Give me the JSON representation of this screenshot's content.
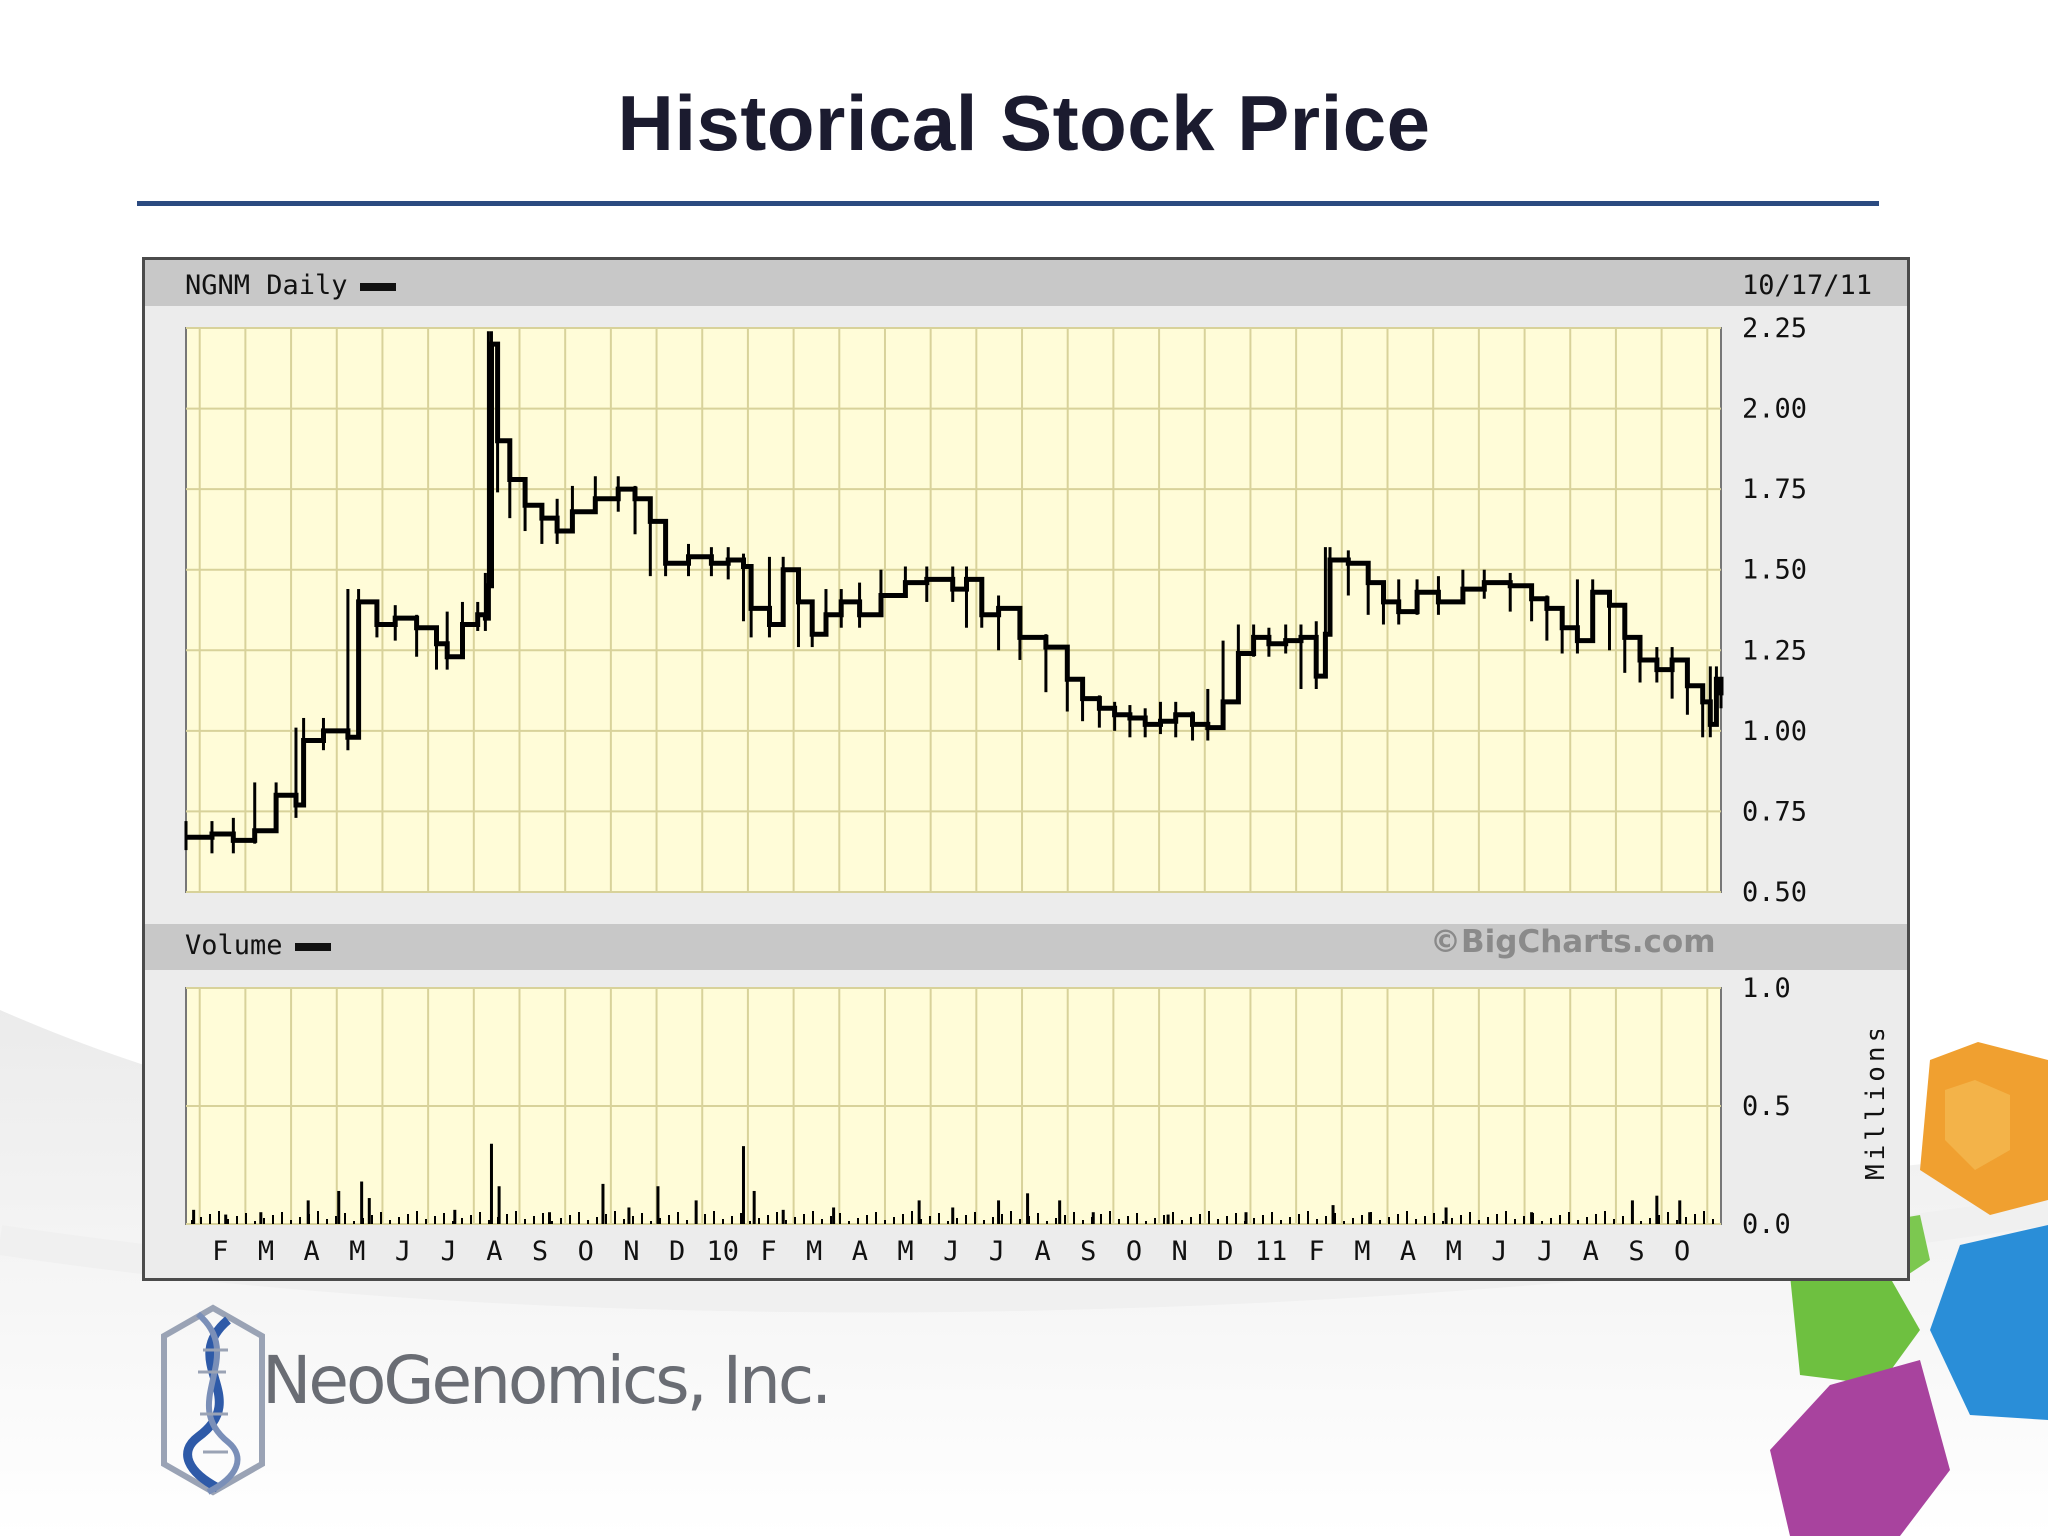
{
  "slide": {
    "title": "Historical Stock Price",
    "company": "NeoGenomics, Inc.",
    "accent_color": "#2b4a80",
    "logo_icon": "dna-helix-icon",
    "decoration_icon": "hexagon-cluster-icon"
  },
  "chart_data": [
    {
      "type": "line",
      "title": "NGNM Daily",
      "date": "10/17/11",
      "series": [
        {
          "name": "NGNM Daily",
          "color": "#000000"
        }
      ],
      "x_label_unit": "month",
      "x_tick_labels": [
        "F",
        "M",
        "A",
        "M",
        "J",
        "J",
        "A",
        "S",
        "O",
        "N",
        "D",
        "10",
        "F",
        "M",
        "A",
        "M",
        "J",
        "J",
        "A",
        "S",
        "O",
        "N",
        "D",
        "11",
        "F",
        "M",
        "A",
        "M",
        "J",
        "J",
        "A",
        "S",
        "O"
      ],
      "x_range": [
        "2009-01-15",
        "2011-10-17"
      ],
      "y_ticks": [
        0.5,
        0.75,
        1.0,
        1.25,
        1.5,
        1.75,
        2.0,
        2.25
      ],
      "y_tick_labels": [
        "0.50",
        "0.75",
        "1.00",
        "1.25",
        "1.50",
        "1.75",
        "2.00",
        "2.25"
      ],
      "ylim": [
        0.5,
        2.25
      ],
      "grid": true,
      "price_points": [
        [
          "2009-01-15",
          0.67
        ],
        [
          "2009-02-01",
          0.68
        ],
        [
          "2009-02-15",
          0.66
        ],
        [
          "2009-03-01",
          0.69
        ],
        [
          "2009-03-15",
          0.8
        ],
        [
          "2009-03-28",
          0.77
        ],
        [
          "2009-04-02",
          0.97
        ],
        [
          "2009-04-15",
          1.0
        ],
        [
          "2009-05-01",
          0.98
        ],
        [
          "2009-05-08",
          1.4
        ],
        [
          "2009-05-20",
          1.33
        ],
        [
          "2009-06-01",
          1.35
        ],
        [
          "2009-06-15",
          1.32
        ],
        [
          "2009-06-28",
          1.27
        ],
        [
          "2009-07-05",
          1.23
        ],
        [
          "2009-07-15",
          1.33
        ],
        [
          "2009-07-25",
          1.36
        ],
        [
          "2009-07-30",
          1.35
        ],
        [
          "2009-08-01",
          1.45
        ],
        [
          "2009-08-03",
          2.2
        ],
        [
          "2009-08-07",
          1.9
        ],
        [
          "2009-08-15",
          1.78
        ],
        [
          "2009-08-25",
          1.7
        ],
        [
          "2009-09-05",
          1.66
        ],
        [
          "2009-09-15",
          1.62
        ],
        [
          "2009-09-25",
          1.68
        ],
        [
          "2009-10-10",
          1.72
        ],
        [
          "2009-10-25",
          1.75
        ],
        [
          "2009-11-05",
          1.72
        ],
        [
          "2009-11-15",
          1.65
        ],
        [
          "2009-11-25",
          1.52
        ],
        [
          "2009-12-10",
          1.54
        ],
        [
          "2009-12-25",
          1.52
        ],
        [
          "2010-01-05",
          1.53
        ],
        [
          "2010-01-15",
          1.51
        ],
        [
          "2010-01-20",
          1.38
        ],
        [
          "2010-02-01",
          1.33
        ],
        [
          "2010-02-10",
          1.5
        ],
        [
          "2010-02-20",
          1.4
        ],
        [
          "2010-03-01",
          1.3
        ],
        [
          "2010-03-10",
          1.36
        ],
        [
          "2010-03-20",
          1.4
        ],
        [
          "2010-04-01",
          1.36
        ],
        [
          "2010-04-15",
          1.42
        ],
        [
          "2010-05-01",
          1.46
        ],
        [
          "2010-05-15",
          1.47
        ],
        [
          "2010-06-01",
          1.44
        ],
        [
          "2010-06-10",
          1.47
        ],
        [
          "2010-06-20",
          1.36
        ],
        [
          "2010-07-01",
          1.38
        ],
        [
          "2010-07-15",
          1.29
        ],
        [
          "2010-08-01",
          1.26
        ],
        [
          "2010-08-15",
          1.16
        ],
        [
          "2010-08-25",
          1.1
        ],
        [
          "2010-09-05",
          1.07
        ],
        [
          "2010-09-15",
          1.05
        ],
        [
          "2010-09-25",
          1.04
        ],
        [
          "2010-10-05",
          1.02
        ],
        [
          "2010-10-15",
          1.03
        ],
        [
          "2010-10-25",
          1.05
        ],
        [
          "2010-11-05",
          1.02
        ],
        [
          "2010-11-15",
          1.01
        ],
        [
          "2010-11-25",
          1.09
        ],
        [
          "2010-12-05",
          1.24
        ],
        [
          "2010-12-15",
          1.29
        ],
        [
          "2010-12-25",
          1.27
        ],
        [
          "2011-01-05",
          1.28
        ],
        [
          "2011-01-15",
          1.29
        ],
        [
          "2011-01-25",
          1.17
        ],
        [
          "2011-01-31",
          1.3
        ],
        [
          "2011-02-03",
          1.53
        ],
        [
          "2011-02-15",
          1.52
        ],
        [
          "2011-02-28",
          1.46
        ],
        [
          "2011-03-10",
          1.4
        ],
        [
          "2011-03-20",
          1.37
        ],
        [
          "2011-04-01",
          1.43
        ],
        [
          "2011-04-15",
          1.4
        ],
        [
          "2011-05-01",
          1.44
        ],
        [
          "2011-05-15",
          1.46
        ],
        [
          "2011-06-01",
          1.45
        ],
        [
          "2011-06-15",
          1.41
        ],
        [
          "2011-06-25",
          1.38
        ],
        [
          "2011-07-05",
          1.32
        ],
        [
          "2011-07-15",
          1.28
        ],
        [
          "2011-07-25",
          1.43
        ],
        [
          "2011-08-05",
          1.39
        ],
        [
          "2011-08-15",
          1.29
        ],
        [
          "2011-08-25",
          1.22
        ],
        [
          "2011-09-05",
          1.19
        ],
        [
          "2011-09-15",
          1.22
        ],
        [
          "2011-09-25",
          1.14
        ],
        [
          "2011-10-05",
          1.09
        ],
        [
          "2011-10-10",
          1.02
        ],
        [
          "2011-10-14",
          1.16
        ],
        [
          "2011-10-17",
          1.11
        ]
      ]
    },
    {
      "type": "bar",
      "title": "Volume",
      "watermark": "©BigCharts.com",
      "series": [
        {
          "name": "Volume",
          "color": "#000000"
        }
      ],
      "ylabel": "Millions",
      "y_ticks": [
        0.0,
        0.5,
        1.0
      ],
      "y_tick_labels": [
        "0.0",
        "0.5",
        "1.0"
      ],
      "ylim": [
        0.0,
        1.0
      ],
      "grid": true,
      "volume_spikes": [
        [
          "2009-01-20",
          0.06
        ],
        [
          "2009-02-10",
          0.04
        ],
        [
          "2009-03-05",
          0.05
        ],
        [
          "2009-04-05",
          0.1
        ],
        [
          "2009-04-25",
          0.14
        ],
        [
          "2009-05-10",
          0.18
        ],
        [
          "2009-05-15",
          0.11
        ],
        [
          "2009-07-10",
          0.06
        ],
        [
          "2009-08-03",
          0.34
        ],
        [
          "2009-08-08",
          0.16
        ],
        [
          "2009-09-10",
          0.05
        ],
        [
          "2009-10-15",
          0.17
        ],
        [
          "2009-11-01",
          0.07
        ],
        [
          "2009-11-20",
          0.16
        ],
        [
          "2009-12-15",
          0.1
        ],
        [
          "2010-01-15",
          0.33
        ],
        [
          "2010-01-22",
          0.14
        ],
        [
          "2010-02-10",
          0.06
        ],
        [
          "2010-03-15",
          0.07
        ],
        [
          "2010-05-10",
          0.1
        ],
        [
          "2010-06-01",
          0.07
        ],
        [
          "2010-07-01",
          0.1
        ],
        [
          "2010-07-20",
          0.13
        ],
        [
          "2010-08-10",
          0.1
        ],
        [
          "2010-09-01",
          0.05
        ],
        [
          "2010-10-20",
          0.04
        ],
        [
          "2010-12-10",
          0.05
        ],
        [
          "2011-02-05",
          0.08
        ],
        [
          "2011-03-01",
          0.05
        ],
        [
          "2011-04-20",
          0.07
        ],
        [
          "2011-06-15",
          0.05
        ],
        [
          "2011-08-20",
          0.1
        ],
        [
          "2011-09-05",
          0.12
        ],
        [
          "2011-09-20",
          0.1
        ]
      ]
    }
  ]
}
